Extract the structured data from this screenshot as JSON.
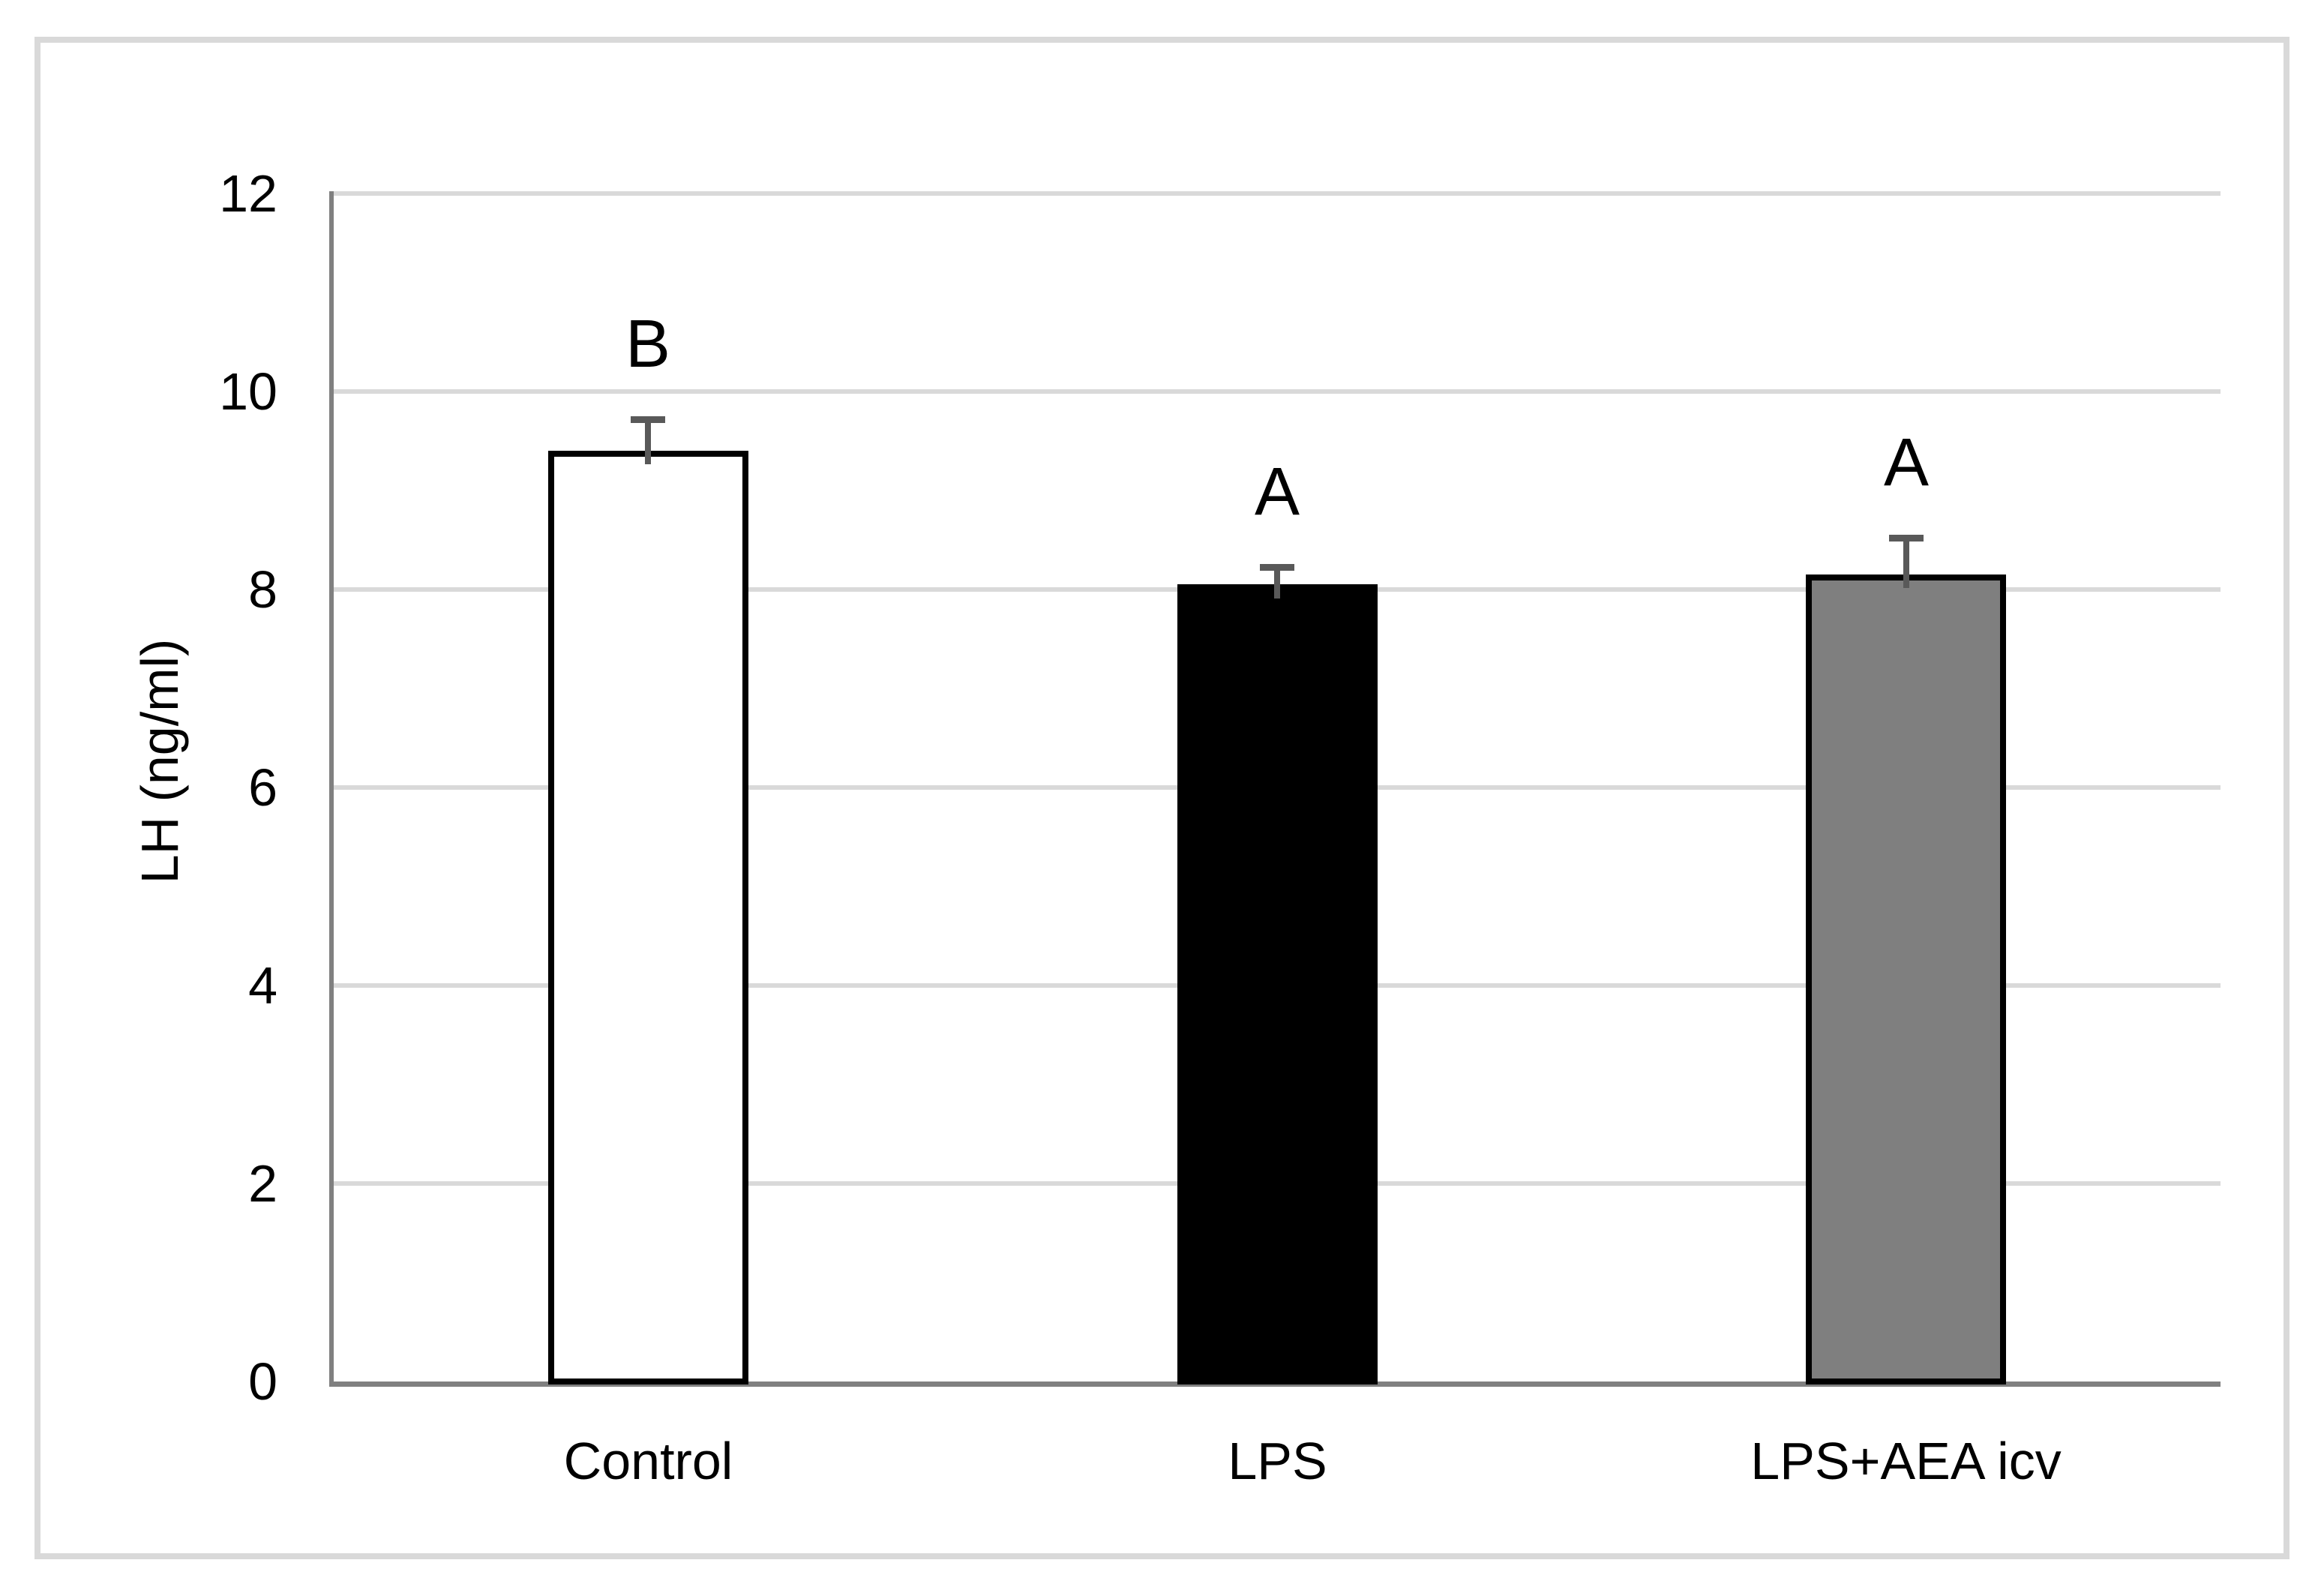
{
  "chart_data": {
    "type": "bar",
    "title": "",
    "xlabel": "",
    "ylabel": "LH (ng/ml)",
    "categories": [
      "Control",
      "LPS",
      "LPS+AEA icv"
    ],
    "values": [
      9.4,
      8.05,
      8.15
    ],
    "errors_plus": [
      0.32,
      0.18,
      0.37
    ],
    "sig_letters": [
      "B",
      "A",
      "A"
    ],
    "bar_colors": [
      "#FFFFFF",
      "#000000",
      "#7F7F7F"
    ],
    "bar_border_color": "#000000",
    "error_bar_color": "#595959",
    "gridline_color": "#D9D9D9",
    "axis_color": "#808080",
    "figure_border_color": "#D9D9D9",
    "ylim": [
      0,
      12
    ],
    "yticks": [
      0,
      2,
      4,
      6,
      8,
      10,
      12
    ],
    "grid": true,
    "legend": "none"
  }
}
